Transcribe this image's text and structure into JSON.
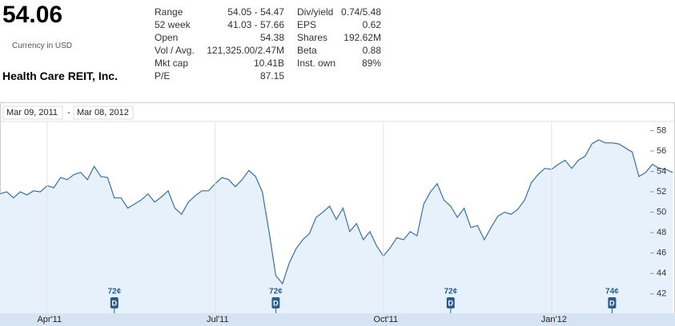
{
  "header": {
    "price": "54.06",
    "currency": "Currency in USD",
    "company": "Health Care REIT, Inc."
  },
  "stats": {
    "left": [
      [
        "Range",
        "54.05 - 54.47"
      ],
      [
        "52 week",
        "41.03 - 57.66"
      ],
      [
        "Open",
        "54.38"
      ],
      [
        "Vol / Avg.",
        "121,325.00/2.47M"
      ],
      [
        "Mkt cap",
        "10.41B"
      ],
      [
        "P/E",
        "87.15"
      ]
    ],
    "right": [
      [
        "Div/yield",
        "0.74/5.48"
      ],
      [
        "EPS",
        "0.62"
      ],
      [
        "Shares",
        "192.62M"
      ],
      [
        "Beta",
        "0.88"
      ],
      [
        "Inst. own",
        "89%"
      ]
    ]
  },
  "chart_data": {
    "type": "area",
    "range_start": "Mar 09, 2011",
    "range_separator": "-",
    "range_end": "Mar 08, 2012",
    "categories": [
      null,
      null,
      null,
      null,
      null,
      null,
      null,
      "Apr'11",
      null,
      null,
      null,
      null,
      null,
      null,
      null,
      null,
      null,
      null,
      null,
      null,
      null,
      null,
      null,
      null,
      null,
      null,
      null,
      null,
      null,
      null,
      null,
      null,
      "Jul'11",
      null,
      null,
      null,
      null,
      null,
      null,
      null,
      null,
      null,
      null,
      null,
      null,
      null,
      null,
      null,
      null,
      null,
      null,
      null,
      null,
      null,
      null,
      null,
      null,
      "Oct'11",
      null,
      null,
      null,
      null,
      null,
      null,
      null,
      null,
      null,
      null,
      null,
      null,
      null,
      null,
      null,
      null,
      null,
      null,
      null,
      null,
      null,
      null,
      null,
      null,
      "Jan'12",
      null,
      null,
      null,
      null,
      null,
      null,
      null,
      null,
      null,
      null,
      null,
      null,
      null,
      null,
      null,
      null,
      null,
      null
    ],
    "values": [
      51.8,
      52.0,
      51.4,
      52.0,
      51.7,
      52.1,
      52.0,
      52.6,
      52.4,
      53.4,
      53.2,
      53.7,
      53.9,
      53.2,
      54.5,
      53.5,
      53.4,
      51.4,
      51.4,
      50.4,
      50.8,
      51.2,
      51.8,
      51.0,
      51.5,
      52.1,
      50.4,
      49.8,
      51.0,
      51.6,
      52.1,
      52.1,
      52.8,
      53.4,
      53.2,
      52.5,
      53.2,
      54.1,
      53.5,
      52.0,
      48.1,
      43.8,
      43.0,
      45.0,
      46.4,
      47.3,
      47.9,
      49.5,
      50.0,
      50.6,
      49.3,
      50.4,
      48.1,
      48.9,
      47.3,
      48.1,
      46.7,
      45.7,
      46.5,
      47.5,
      47.3,
      48.1,
      47.7,
      50.8,
      52.0,
      52.8,
      51.2,
      50.6,
      49.5,
      50.4,
      48.5,
      48.7,
      47.3,
      48.5,
      49.6,
      50.0,
      49.8,
      50.3,
      51.2,
      52.9,
      53.7,
      54.3,
      54.2,
      54.7,
      55.1,
      54.3,
      55.1,
      55.5,
      56.7,
      57.1,
      56.8,
      56.8,
      56.7,
      56.3,
      55.9,
      53.5,
      53.9,
      54.7,
      54.3,
      54.2,
      53.9
    ],
    "dividends": [
      null,
      null,
      null,
      null,
      null,
      null,
      null,
      null,
      null,
      null,
      null,
      null,
      null,
      null,
      null,
      null,
      null,
      "72¢",
      null,
      null,
      null,
      null,
      null,
      null,
      null,
      null,
      null,
      null,
      null,
      null,
      null,
      null,
      null,
      null,
      null,
      null,
      null,
      null,
      null,
      null,
      null,
      "72¢",
      null,
      null,
      null,
      null,
      null,
      null,
      null,
      null,
      null,
      null,
      null,
      null,
      null,
      null,
      null,
      null,
      null,
      null,
      null,
      null,
      null,
      null,
      null,
      null,
      null,
      "72¢",
      null,
      null,
      null,
      null,
      null,
      null,
      null,
      null,
      null,
      null,
      null,
      null,
      null,
      null,
      null,
      null,
      null,
      null,
      null,
      null,
      null,
      null,
      null,
      "74¢",
      null,
      null,
      null,
      null,
      null,
      null,
      null,
      null,
      null
    ],
    "dividend_icon": "D",
    "color": "#3d6fa3",
    "fill": "#e7f1fb",
    "ylim": [
      40.1,
      58.9
    ],
    "yticks": [
      42,
      44,
      46,
      48,
      50,
      52,
      54,
      56,
      58
    ]
  }
}
